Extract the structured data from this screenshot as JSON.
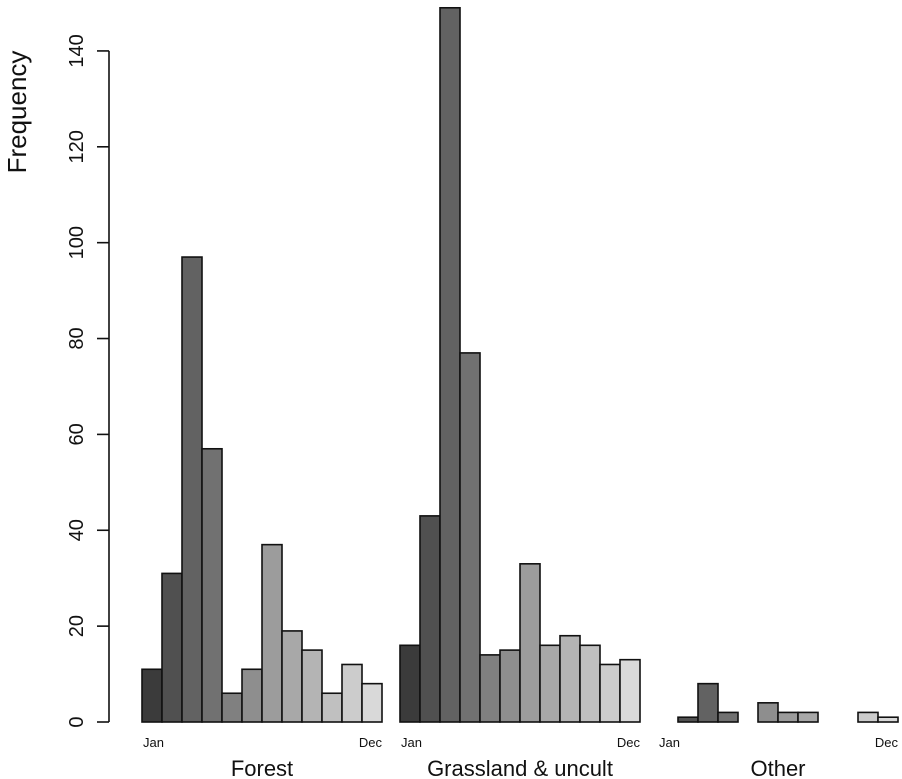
{
  "chart_data": {
    "type": "bar",
    "ylabel": "Frequency",
    "ylim": [
      0,
      150
    ],
    "yticks": [
      0,
      20,
      40,
      60,
      80,
      100,
      120,
      140
    ],
    "months_shown": {
      "first": "Jan",
      "last": "Dec"
    },
    "groups": [
      {
        "label": "Forest",
        "values": [
          11,
          31,
          97,
          57,
          6,
          11,
          37,
          19,
          15,
          6,
          12,
          8
        ]
      },
      {
        "label": "Grassland & uncult",
        "values": [
          16,
          43,
          149,
          77,
          14,
          15,
          33,
          16,
          18,
          16,
          12,
          13
        ]
      },
      {
        "label": "Other",
        "values": [
          0,
          1,
          8,
          2,
          0,
          4,
          2,
          2,
          0,
          0,
          2,
          1
        ]
      }
    ],
    "month_colors": [
      "#3b3b3b",
      "#505050",
      "#626262",
      "#717171",
      "#808080",
      "#8e8e8e",
      "#9c9c9c",
      "#a8a8a8",
      "#b4b4b4",
      "#c0c0c0",
      "#cccccc",
      "#d9d9d9"
    ],
    "grid": false,
    "legend": "none"
  }
}
